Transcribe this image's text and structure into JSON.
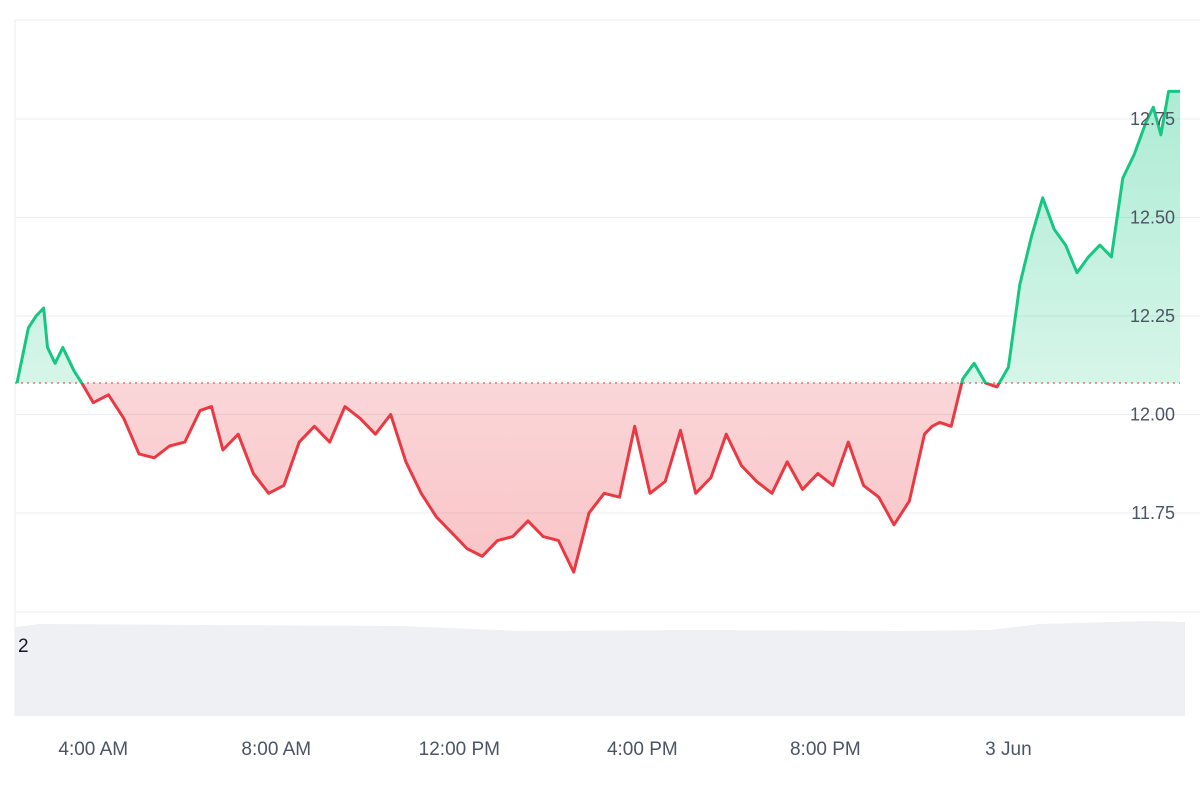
{
  "chart_data": {
    "type": "line",
    "title": "",
    "xlabel": "",
    "ylabel": "",
    "baseline": 12.08,
    "ylim": [
      11.5,
      13.0
    ],
    "xlim": [
      "2024-06-02T02:20",
      "2024-06-03T03:45"
    ],
    "grid": true,
    "y_ticks": [
      "12.75",
      "12.50",
      "12.25",
      "12.00",
      "11.75"
    ],
    "y_tick_values": [
      12.75,
      12.5,
      12.25,
      12.0,
      11.75
    ],
    "x_ticks": [
      "4:00 AM",
      "8:00 AM",
      "12:00 PM",
      "4:00 PM",
      "8:00 PM",
      "3 Jun"
    ],
    "x_tick_times": [
      "2024-06-02T04:00",
      "2024-06-02T08:00",
      "2024-06-02T12:00",
      "2024-06-02T16:00",
      "2024-06-02T20:00",
      "2024-06-03T00:00"
    ],
    "volume_axis_label": "2",
    "colors": {
      "up": "#16c784",
      "down": "#ea3943",
      "up_fill": "#16c784",
      "down_fill": "#ea3943",
      "volume": "#eef0f3",
      "baseline": "#e05a5a"
    },
    "series": [
      {
        "x": [
          "2024-06-02T02:20",
          "2024-06-02T02:35",
          "2024-06-02T02:45",
          "2024-06-02T02:55",
          "2024-06-02T03:00",
          "2024-06-02T03:10",
          "2024-06-02T03:20",
          "2024-06-02T03:35",
          "2024-06-02T03:45",
          "2024-06-02T04:00",
          "2024-06-02T04:10",
          "2024-06-02T04:20",
          "2024-06-02T04:40",
          "2024-06-02T05:00",
          "2024-06-02T05:20",
          "2024-06-02T05:40",
          "2024-06-02T06:00",
          "2024-06-02T06:20",
          "2024-06-02T06:35",
          "2024-06-02T06:50",
          "2024-06-02T07:10",
          "2024-06-02T07:30",
          "2024-06-02T07:50",
          "2024-06-02T08:10",
          "2024-06-02T08:30",
          "2024-06-02T08:50",
          "2024-06-02T09:10",
          "2024-06-02T09:30",
          "2024-06-02T09:50",
          "2024-06-02T10:10",
          "2024-06-02T10:30",
          "2024-06-02T10:50",
          "2024-06-02T11:10",
          "2024-06-02T11:30",
          "2024-06-02T11:50",
          "2024-06-02T12:10",
          "2024-06-02T12:30",
          "2024-06-02T12:50",
          "2024-06-02T13:10",
          "2024-06-02T13:30",
          "2024-06-02T13:50",
          "2024-06-02T14:10",
          "2024-06-02T14:30",
          "2024-06-02T14:50",
          "2024-06-02T15:10",
          "2024-06-02T15:30",
          "2024-06-02T15:50",
          "2024-06-02T16:10",
          "2024-06-02T16:30",
          "2024-06-02T16:50",
          "2024-06-02T17:10",
          "2024-06-02T17:30",
          "2024-06-02T17:50",
          "2024-06-02T18:10",
          "2024-06-02T18:30",
          "2024-06-02T18:50",
          "2024-06-02T19:10",
          "2024-06-02T19:30",
          "2024-06-02T19:50",
          "2024-06-02T20:10",
          "2024-06-02T20:30",
          "2024-06-02T20:50",
          "2024-06-02T21:10",
          "2024-06-02T21:30",
          "2024-06-02T21:50",
          "2024-06-02T22:10",
          "2024-06-02T22:20",
          "2024-06-02T22:30",
          "2024-06-02T22:45",
          "2024-06-02T23:00",
          "2024-06-02T23:15",
          "2024-06-02T23:30",
          "2024-06-02T23:45",
          "2024-06-03T00:00",
          "2024-06-03T00:15",
          "2024-06-03T00:30",
          "2024-06-03T00:45",
          "2024-06-03T01:00",
          "2024-06-03T01:15",
          "2024-06-03T01:30",
          "2024-06-03T01:45",
          "2024-06-03T02:00",
          "2024-06-03T02:15",
          "2024-06-03T02:30",
          "2024-06-03T02:45",
          "2024-06-03T03:00",
          "2024-06-03T03:10",
          "2024-06-03T03:20",
          "2024-06-03T03:30",
          "2024-06-03T03:45"
        ],
        "values": [
          12.08,
          12.22,
          12.25,
          12.27,
          12.17,
          12.13,
          12.17,
          12.11,
          12.08,
          12.03,
          12.04,
          12.05,
          11.99,
          11.9,
          11.89,
          11.92,
          11.93,
          12.01,
          12.02,
          11.91,
          11.95,
          11.85,
          11.8,
          11.82,
          11.93,
          11.97,
          11.93,
          12.02,
          11.99,
          11.95,
          12.0,
          11.88,
          11.8,
          11.74,
          11.7,
          11.66,
          11.64,
          11.68,
          11.69,
          11.73,
          11.69,
          11.68,
          11.6,
          11.75,
          11.8,
          11.79,
          11.97,
          11.8,
          11.83,
          11.96,
          11.8,
          11.84,
          11.95,
          11.87,
          11.83,
          11.8,
          11.88,
          11.81,
          11.85,
          11.82,
          11.93,
          11.82,
          11.79,
          11.72,
          11.78,
          11.95,
          11.97,
          11.98,
          11.97,
          12.09,
          12.13,
          12.08,
          12.07,
          12.12,
          12.33,
          12.45,
          12.55,
          12.47,
          12.43,
          12.36,
          12.4,
          12.43,
          12.4,
          12.6,
          12.66,
          12.74,
          12.78,
          12.71,
          12.82,
          12.82
        ]
      }
    ]
  }
}
